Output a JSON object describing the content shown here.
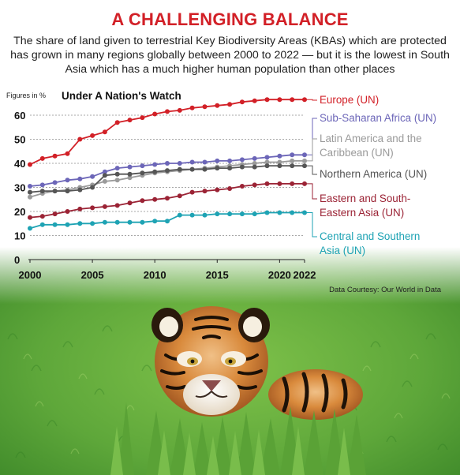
{
  "title": "A CHALLENGING BALANCE",
  "subtitle": "The share of land given to terrestrial Key Biodiversity Areas (KBAs) which are protected has grown in many regions globally between 2000 to 2022 — but it is the lowest in South Asia which has a much higher human population than other places",
  "credit": "Data Courtesy: Our World in Data",
  "colors": {
    "title": "#d22027",
    "europe": "#d22027",
    "ssa": "#6c66b8",
    "latam": "#9a9a9a",
    "namerica": "#555555",
    "esea": "#9b2335",
    "csa": "#1ea3b4"
  },
  "chart_data": {
    "type": "line",
    "title": "Under A Nation's Watch",
    "ylabel": "Figures in %",
    "xlabel": "",
    "x": [
      2000,
      2001,
      2002,
      2003,
      2004,
      2005,
      2006,
      2007,
      2008,
      2009,
      2010,
      2011,
      2012,
      2013,
      2014,
      2015,
      2016,
      2017,
      2018,
      2019,
      2020,
      2021,
      2022
    ],
    "xticks": [
      2000,
      2005,
      2010,
      2015,
      2020,
      2022
    ],
    "yticks": [
      0,
      10,
      20,
      30,
      40,
      50,
      60
    ],
    "ylim": [
      0,
      62
    ],
    "grid": true,
    "series": [
      {
        "name": "Europe (UN)",
        "color": "#d22027",
        "values": [
          39.5,
          42,
          43,
          44,
          50,
          51.5,
          53,
          57,
          58,
          59,
          60.5,
          61.5,
          62,
          63,
          63.5,
          64,
          64.5,
          65.5,
          66,
          66.5,
          66.5,
          66.5,
          66.5
        ]
      },
      {
        "name": "Sub-Saharan Africa (UN)",
        "color": "#6c66b8",
        "values": [
          30.5,
          31,
          32,
          33,
          33.5,
          34.5,
          36.5,
          38,
          38.5,
          39,
          39.5,
          40,
          40,
          40.5,
          40.5,
          41,
          41,
          41.5,
          42,
          42.5,
          43,
          43.5,
          43.5
        ]
      },
      {
        "name": "Latin America and the Caribbean (UN)",
        "color": "#9a9a9a",
        "values": [
          26,
          27.5,
          28.5,
          29,
          30,
          31,
          32.5,
          33,
          34,
          35,
          36,
          36.5,
          37,
          37.5,
          38,
          38.5,
          39,
          39.5,
          40,
          40.5,
          40.5,
          41,
          41
        ]
      },
      {
        "name": "Northern America (UN)",
        "color": "#555555",
        "values": [
          28,
          28.5,
          28.5,
          28.5,
          29,
          30,
          35,
          35.5,
          35.5,
          36,
          36.5,
          37,
          37.5,
          37.5,
          37.5,
          38,
          38,
          38.5,
          38.5,
          39,
          39,
          39,
          39
        ]
      },
      {
        "name": "Eastern and South-Eastern Asia (UN)",
        "color": "#9b2335",
        "values": [
          17.5,
          18,
          19,
          20,
          21,
          21.5,
          22,
          22.5,
          23.5,
          24.5,
          25,
          25.5,
          26.5,
          28,
          28.5,
          29,
          29.5,
          30.5,
          31,
          31.5,
          31.5,
          31.5,
          31.5
        ]
      },
      {
        "name": "Central and Southern Asia (UN)",
        "color": "#1ea3b4",
        "values": [
          13,
          14.5,
          14.5,
          14.5,
          15,
          15,
          15.5,
          15.5,
          15.5,
          15.5,
          16,
          16,
          18.5,
          18.5,
          18.5,
          19,
          19,
          19,
          19,
          19.5,
          19.5,
          19.5,
          19.5
        ]
      }
    ]
  },
  "legend": [
    {
      "lines": [
        "Europe (UN)"
      ],
      "color": "#d22027"
    },
    {
      "lines": [
        "Sub-Saharan Africa (UN)"
      ],
      "color": "#6c66b8"
    },
    {
      "lines": [
        "Latin America and the",
        "Caribbean (UN)"
      ],
      "color": "#9a9a9a"
    },
    {
      "lines": [
        "Northern America (UN)"
      ],
      "color": "#555555"
    },
    {
      "lines": [
        "Eastern and South-",
        "Eastern Asia (UN)"
      ],
      "color": "#9b2335"
    },
    {
      "lines": [
        "Central and Southern",
        "Asia (UN)"
      ],
      "color": "#1ea3b4"
    }
  ],
  "photo": {
    "subject": "tiger in grass"
  }
}
